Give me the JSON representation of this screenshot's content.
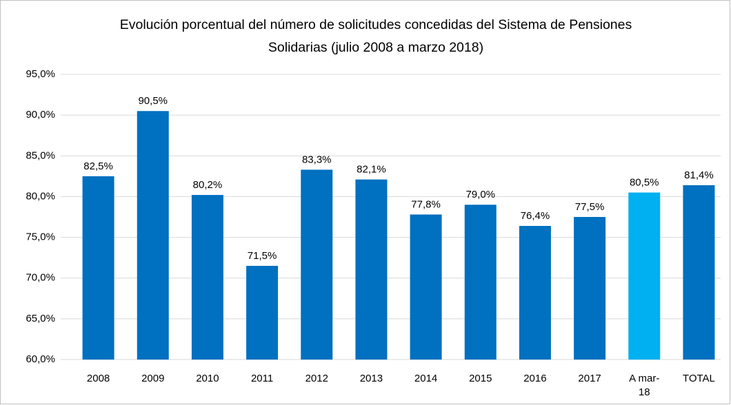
{
  "chart_data": {
    "type": "bar",
    "title": "Evolución porcentual del número de solicitudes concedidas del Sistema de Pensiones Solidarias (julio 2008 a marzo 2018)",
    "categories": [
      "2008",
      "2009",
      "2010",
      "2011",
      "2012",
      "2013",
      "2014",
      "2015",
      "2016",
      "2017",
      "A mar-18",
      "TOTAL"
    ],
    "values": [
      82.5,
      90.5,
      80.2,
      71.5,
      83.3,
      82.1,
      77.8,
      79.0,
      76.4,
      77.5,
      80.5,
      81.4
    ],
    "value_labels": [
      "82,5%",
      "90,5%",
      "80,2%",
      "71,5%",
      "83,3%",
      "82,1%",
      "77,8%",
      "79,0%",
      "76,4%",
      "77,5%",
      "80,5%",
      "81,4%"
    ],
    "colors": [
      "#0070c0",
      "#0070c0",
      "#0070c0",
      "#0070c0",
      "#0070c0",
      "#0070c0",
      "#0070c0",
      "#0070c0",
      "#0070c0",
      "#0070c0",
      "#00b0f0",
      "#0070c0"
    ],
    "ylim": [
      60,
      95
    ],
    "yticks": [
      {
        "value": 60,
        "label": "60,0%"
      },
      {
        "value": 65,
        "label": "65,0%"
      },
      {
        "value": 70,
        "label": "70,0%"
      },
      {
        "value": 75,
        "label": "75,0%"
      },
      {
        "value": 80,
        "label": "80,0%"
      },
      {
        "value": 85,
        "label": "85,0%"
      },
      {
        "value": 90,
        "label": "90,0%"
      },
      {
        "value": 95,
        "label": "95,0%"
      }
    ],
    "grid": true
  }
}
